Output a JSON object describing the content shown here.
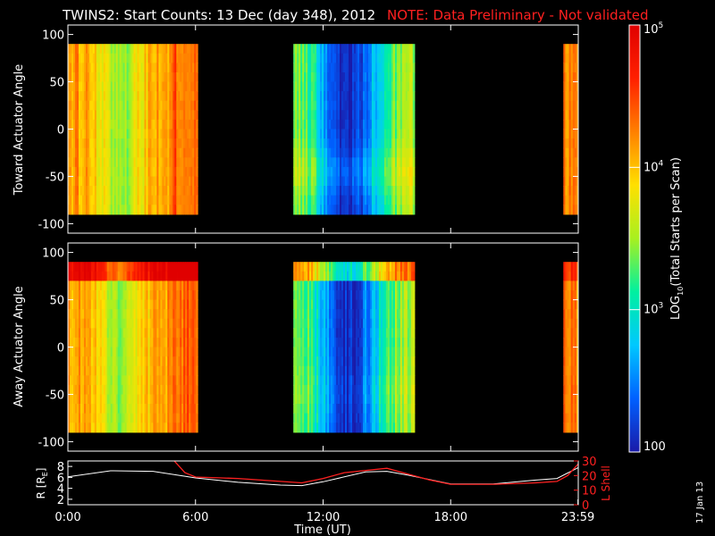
{
  "title": {
    "main": "TWINS2: Start Counts: 13 Dec (day 348), 2012",
    "note": "NOTE: Data Preliminary - Not validated",
    "note_color": "#ff2020"
  },
  "stamp": "17 Jan 13",
  "colors": {
    "background": "#000000",
    "axis": "#ffffff",
    "lshell": "#ff2020",
    "rline": "#ffffff"
  },
  "chart_data": [
    {
      "type": "heatmap",
      "ylabel": "Toward Actuator Angle",
      "ylim": [
        -110,
        110
      ],
      "yticks": [
        100,
        50,
        0,
        -50,
        -100
      ],
      "data_y_range": [
        -90,
        90
      ],
      "x_unit": "hours UT",
      "xlim": [
        0,
        24
      ],
      "data_intervals_hours": [
        [
          0,
          6.1
        ],
        [
          10.6,
          16.3
        ],
        [
          23.3,
          24
        ]
      ],
      "description_levels": {
        "early_interval": "orange-yellow (~10^4)",
        "middle_interval_core": "blue (~10^2.5)"
      }
    },
    {
      "type": "heatmap",
      "ylabel": "Away Actuator Angle",
      "ylim": [
        -110,
        110
      ],
      "yticks": [
        100,
        50,
        0,
        -50,
        -100
      ],
      "data_y_range": [
        -90,
        90
      ],
      "xlim": [
        0,
        24
      ],
      "data_intervals_hours": [
        [
          0,
          6.1
        ],
        [
          10.6,
          16.3
        ],
        [
          23.3,
          24
        ]
      ]
    },
    {
      "type": "line",
      "ylabel": "R [R",
      "ylabel_sub": "E",
      "ylabel_end": "]",
      "ylim": [
        1,
        9
      ],
      "yticks": [
        8,
        6,
        4,
        2
      ],
      "y2label": "L Shell",
      "y2lim": [
        0,
        30
      ],
      "y2ticks": [
        30,
        20,
        10,
        0
      ],
      "xlim": [
        0,
        24
      ],
      "xlabel": "Time (UT)",
      "xticks": [
        "0:00",
        "6:00",
        "12:00",
        "18:00",
        "23:59"
      ],
      "series": [
        {
          "name": "R",
          "x": [
            0,
            2,
            4,
            5.5,
            6,
            8,
            10,
            11,
            12,
            14,
            15,
            16,
            18,
            20,
            22,
            23,
            23.5,
            24
          ],
          "values": [
            6.1,
            7.2,
            7.1,
            6.2,
            5.9,
            5.1,
            4.6,
            4.5,
            5.2,
            7.0,
            7.1,
            6.4,
            4.8,
            4.8,
            5.5,
            5.8,
            6.8,
            7.8
          ]
        },
        {
          "name": "L Shell",
          "x": [
            5,
            5.5,
            6,
            8,
            10,
            11,
            12,
            13,
            15,
            16,
            17,
            18,
            20,
            22,
            23,
            23.5,
            24
          ],
          "values": [
            30,
            22,
            19,
            18,
            16,
            15,
            18,
            22,
            25,
            21,
            17,
            14,
            14,
            15,
            16,
            20,
            28
          ]
        }
      ]
    }
  ],
  "colorbar": {
    "label_pre": "LOG",
    "label_sub": "10",
    "label_post": "(Total Starts per Scan)",
    "ticks": [
      {
        "base": "10",
        "exp": "5",
        "log": 5
      },
      {
        "base": "10",
        "exp": "4",
        "log": 4
      },
      {
        "base": "10",
        "exp": "3",
        "log": 3
      },
      {
        "base": "100",
        "exp": "",
        "log": 2
      }
    ],
    "range_log": [
      2,
      5
    ],
    "stops": [
      "#1a1aa8",
      "#0060ff",
      "#00c8ff",
      "#00f0a0",
      "#a8f020",
      "#ffe000",
      "#ff8000",
      "#ff2000",
      "#e00000"
    ]
  }
}
